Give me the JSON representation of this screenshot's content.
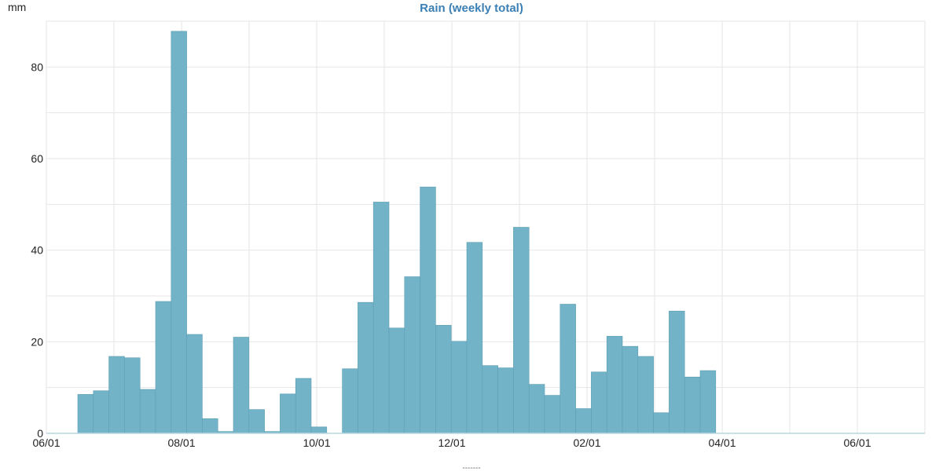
{
  "chart_data": {
    "type": "bar",
    "title": "Rain (weekly total)",
    "unit_label": "mm",
    "footer_label": "-------",
    "ylim": [
      0,
      90
    ],
    "y_ticks": [
      0,
      20,
      40,
      60,
      80
    ],
    "x_tick_labels": [
      "06/01",
      "08/01",
      "10/01",
      "12/01",
      "02/01",
      "04/01",
      "06/01"
    ],
    "grid": true,
    "bar_color": "#73b3c7",
    "bar_border_color": "#5c9fb4",
    "title_color": "#3a7fb5",
    "values": [
      8.5,
      9.3,
      16.8,
      16.5,
      9.6,
      28.8,
      87.8,
      21.6,
      3.2,
      0.4,
      21.0,
      5.2,
      0.4,
      8.6,
      12.0,
      1.4,
      0,
      14.1,
      28.6,
      50.5,
      23.0,
      34.2,
      53.8,
      23.6,
      20.1,
      41.7,
      14.8,
      14.3,
      45.0,
      10.7,
      8.3,
      28.2,
      5.4,
      13.4,
      21.2,
      19.0,
      16.8,
      4.5,
      26.7,
      12.3,
      13.7
    ]
  }
}
